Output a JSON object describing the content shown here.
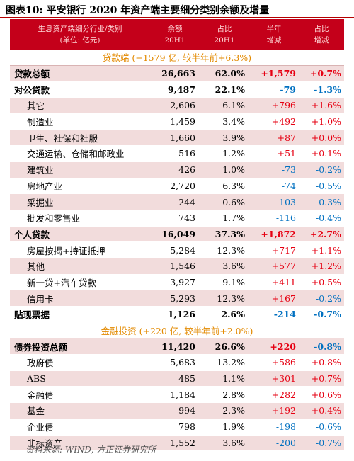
{
  "title": "图表10:  平安银行 2020 年资产端主要细分类别余额及增量",
  "header": {
    "col0_line1": "生息资产端细分行业/类别",
    "col0_line2": "(单位: 亿元)",
    "col1_line1": "余额",
    "col1_line2": "20H1",
    "col2_line1": "占比",
    "col2_line2": "20H1",
    "col3_line1": "半年",
    "col3_line2": "增减",
    "col4_line1": "占比",
    "col4_line2": "增减"
  },
  "section_loans": "贷款端 (+1579 亿, 较半年前+6.3%)",
  "loans": [
    {
      "name": "贷款总额",
      "balance": "26,663",
      "share": "62.0%",
      "change": "+1,579",
      "share_change": "+0.7%",
      "level": "top"
    },
    {
      "name": "对公贷款",
      "balance": "9,487",
      "share": "22.1%",
      "change": "-79",
      "share_change": "-1.3%",
      "level": "top"
    },
    {
      "name": "其它",
      "balance": "2,606",
      "share": "6.1%",
      "change": "+796",
      "share_change": "+1.6%",
      "level": "sub"
    },
    {
      "name": "制造业",
      "balance": "1,459",
      "share": "3.4%",
      "change": "+492",
      "share_change": "+1.0%",
      "level": "sub"
    },
    {
      "name": "卫生、社保和社服",
      "balance": "1,660",
      "share": "3.9%",
      "change": "+87",
      "share_change": "+0.0%",
      "level": "sub"
    },
    {
      "name": "交通运输、仓储和邮政业",
      "balance": "516",
      "share": "1.2%",
      "change": "+51",
      "share_change": "+0.1%",
      "level": "sub"
    },
    {
      "name": "建筑业",
      "balance": "426",
      "share": "1.0%",
      "change": "-73",
      "share_change": "-0.2%",
      "level": "sub"
    },
    {
      "name": "房地产业",
      "balance": "2,720",
      "share": "6.3%",
      "change": "-74",
      "share_change": "-0.5%",
      "level": "sub"
    },
    {
      "name": "采掘业",
      "balance": "244",
      "share": "0.6%",
      "change": "-103",
      "share_change": "-0.3%",
      "level": "sub"
    },
    {
      "name": "批发和零售业",
      "balance": "743",
      "share": "1.7%",
      "change": "-116",
      "share_change": "-0.4%",
      "level": "sub"
    },
    {
      "name": "个人贷款",
      "balance": "16,049",
      "share": "37.3%",
      "change": "+1,872",
      "share_change": "+2.7%",
      "level": "top"
    },
    {
      "name": "房屋按揭+持证抵押",
      "balance": "5,284",
      "share": "12.3%",
      "change": "+717",
      "share_change": "+1.1%",
      "level": "sub"
    },
    {
      "name": "其他",
      "balance": "1,546",
      "share": "3.6%",
      "change": "+577",
      "share_change": "+1.2%",
      "level": "sub"
    },
    {
      "name": "新一贷+汽车贷款",
      "balance": "3,927",
      "share": "9.1%",
      "change": "+411",
      "share_change": "+0.5%",
      "level": "sub"
    },
    {
      "name": "信用卡",
      "balance": "5,293",
      "share": "12.3%",
      "change": "+167",
      "share_change": "-0.2%",
      "level": "sub"
    },
    {
      "name": "贴现票据",
      "balance": "1,126",
      "share": "2.6%",
      "change": "-214",
      "share_change": "-0.7%",
      "level": "top"
    }
  ],
  "section_invest": "金融投资 (+220 亿, 较半年前+2.0%)",
  "invest": [
    {
      "name": "债券投资总额",
      "balance": "11,420",
      "share": "26.6%",
      "change": "+220",
      "share_change": "-0.8%",
      "level": "top"
    },
    {
      "name": "政府债",
      "balance": "5,683",
      "share": "13.2%",
      "change": "+586",
      "share_change": "+0.8%",
      "level": "sub"
    },
    {
      "name": "ABS",
      "balance": "485",
      "share": "1.1%",
      "change": "+301",
      "share_change": "+0.7%",
      "level": "sub"
    },
    {
      "name": "金融债",
      "balance": "1,184",
      "share": "2.8%",
      "change": "+282",
      "share_change": "+0.6%",
      "level": "sub"
    },
    {
      "name": "基金",
      "balance": "994",
      "share": "2.3%",
      "change": "+192",
      "share_change": "+0.4%",
      "level": "sub"
    },
    {
      "name": "企业债",
      "balance": "798",
      "share": "1.9%",
      "change": "-198",
      "share_change": "-0.6%",
      "level": "sub"
    },
    {
      "name": "非标资产",
      "balance": "1,552",
      "share": "3.6%",
      "change": "-200",
      "share_change": "-0.7%",
      "level": "sub"
    }
  ],
  "source": "资料来源: WIND, 方正证券研究所"
}
